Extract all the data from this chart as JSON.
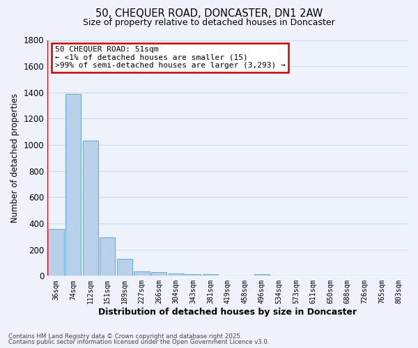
{
  "title_line1": "50, CHEQUER ROAD, DONCASTER, DN1 2AW",
  "title_line2": "Size of property relative to detached houses in Doncaster",
  "xlabel": "Distribution of detached houses by size in Doncaster",
  "ylabel": "Number of detached properties",
  "categories": [
    "36sqm",
    "74sqm",
    "112sqm",
    "151sqm",
    "189sqm",
    "227sqm",
    "266sqm",
    "304sqm",
    "343sqm",
    "381sqm",
    "419sqm",
    "458sqm",
    "496sqm",
    "534sqm",
    "573sqm",
    "611sqm",
    "650sqm",
    "688sqm",
    "726sqm",
    "765sqm",
    "803sqm"
  ],
  "values": [
    360,
    1390,
    1030,
    295,
    130,
    35,
    28,
    20,
    10,
    10,
    0,
    0,
    10,
    0,
    0,
    0,
    0,
    0,
    0,
    0,
    0
  ],
  "bar_color": "#b8d0ea",
  "bar_edge_color": "#6baed6",
  "ylim": [
    0,
    1800
  ],
  "yticks": [
    0,
    200,
    400,
    600,
    800,
    1000,
    1200,
    1400,
    1600,
    1800
  ],
  "annotation_title": "50 CHEQUER ROAD: 51sqm",
  "annotation_line1": "← <1% of detached houses are smaller (15)",
  "annotation_line2": ">99% of semi-detached houses are larger (3,293) →",
  "annotation_box_color": "#ffffff",
  "annotation_box_edge_color": "#cc0000",
  "red_line_color": "#cc0000",
  "footer_line1": "Contains HM Land Registry data © Crown copyright and database right 2025.",
  "footer_line2": "Contains public sector information licensed under the Open Government Licence v3.0.",
  "bg_color": "#eef2fa",
  "grid_color": "#d0d8f0",
  "plot_bg_color": "#eef2fa"
}
